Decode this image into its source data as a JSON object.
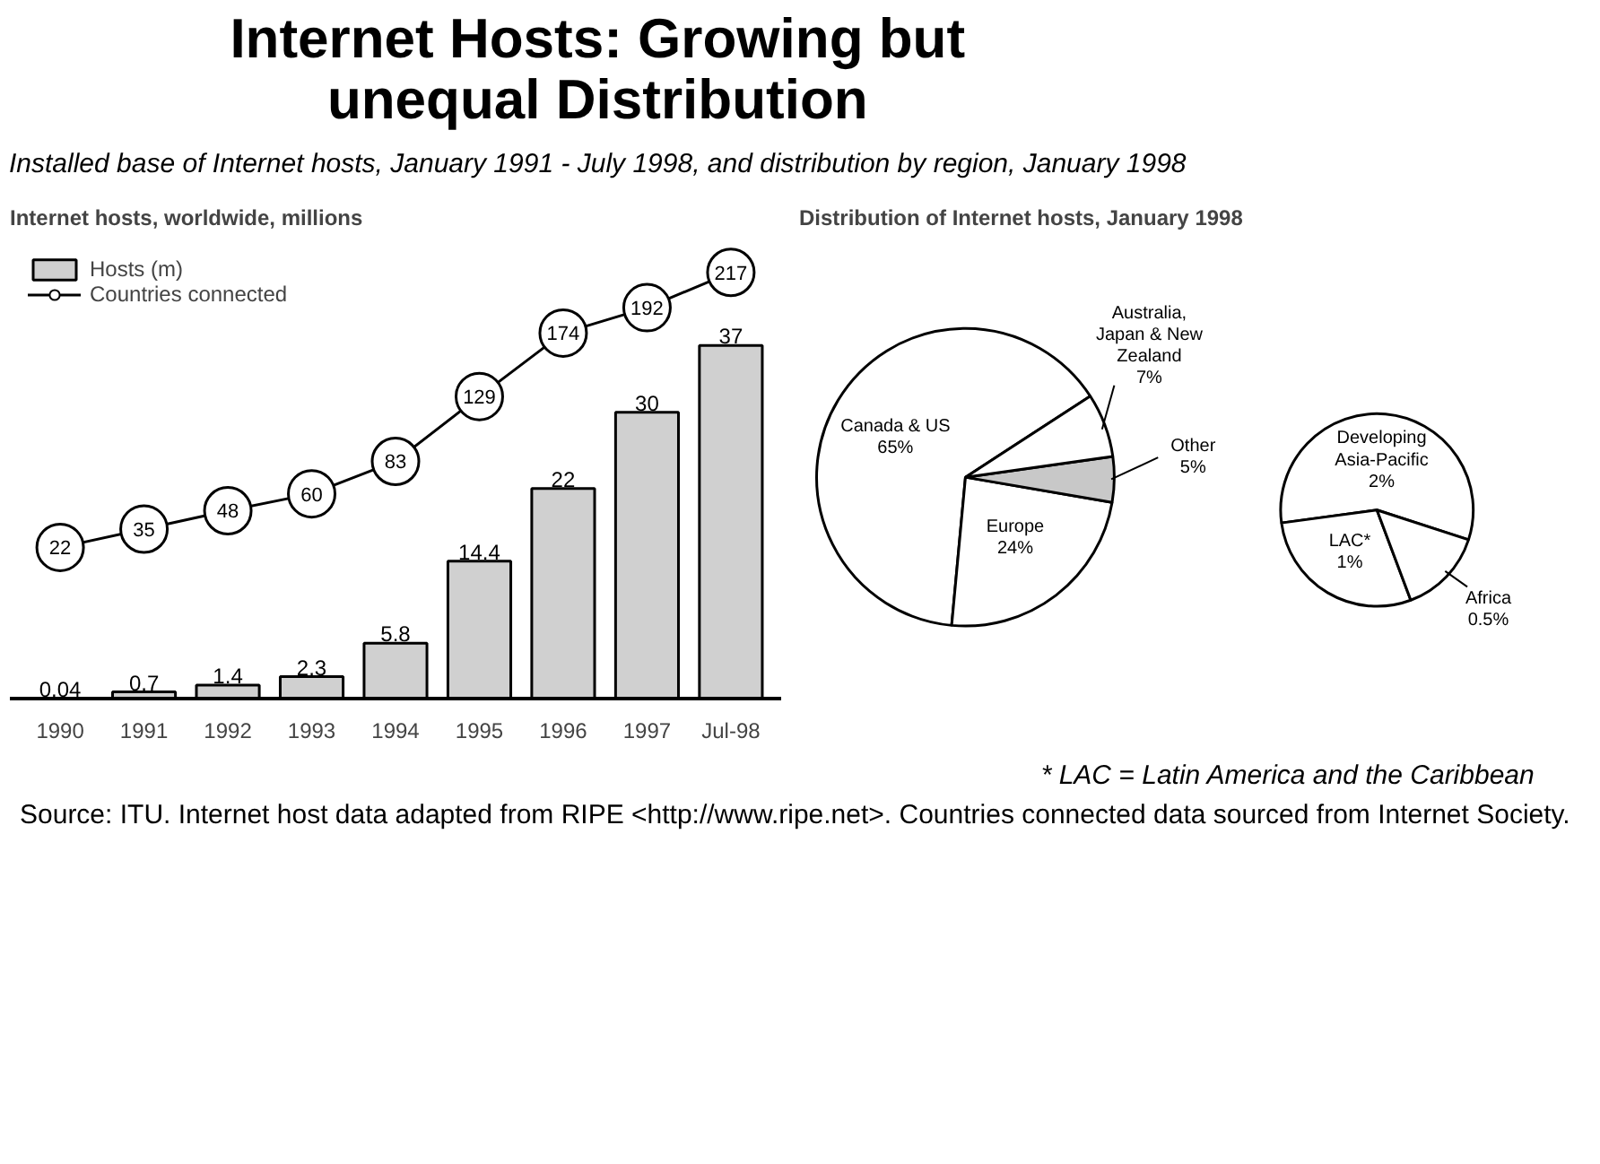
{
  "chart_data": [
    {
      "type": "other",
      "title": "Internet Hosts: Growing but unequal Distribution",
      "subtitle": "Installed base of Internet hosts, January 1991 - July 1998, and distribution by region, January 1998"
    },
    {
      "type": "bar",
      "title": "Internet hosts, worldwide, millions",
      "categories": [
        "1990",
        "1991",
        "1992",
        "1993",
        "1994",
        "1995",
        "1996",
        "1997",
        "Jul-98"
      ],
      "data_labels": true,
      "legend": "top left",
      "grid": false,
      "series": [
        {
          "name": "Hosts (m)",
          "type": "bar",
          "color": "#d0d0d0",
          "values": [
            0.04,
            0.7,
            1.4,
            2.3,
            5.8,
            14.4,
            22,
            30,
            37
          ]
        },
        {
          "name": "Countries connected",
          "type": "line",
          "axis": "y2",
          "marker": "circle",
          "color": "#000000",
          "values": [
            22,
            35,
            48,
            60,
            83,
            129,
            174,
            192,
            217
          ]
        }
      ]
    },
    {
      "type": "pie",
      "title": "Distribution of Internet hosts, January 1998",
      "categories": [
        "Canada & US",
        "Europe",
        "Other",
        "Australia, Japan & New Zealand"
      ],
      "values": [
        65,
        24,
        5,
        7
      ],
      "value_labels": [
        "65%",
        "24%",
        "5%",
        "7%"
      ],
      "colors": [
        "#ffffff",
        "#ffffff",
        "#c8c8c8",
        "#ffffff"
      ]
    },
    {
      "type": "pie",
      "categories": [
        "Developing Asia-Pacific",
        "LAC*",
        "Africa"
      ],
      "values": [
        2,
        1,
        0.5
      ],
      "value_labels": [
        "2%",
        "1%",
        "0.5%"
      ],
      "colors": [
        "#ffffff",
        "#ffffff",
        "#ffffff"
      ]
    },
    {
      "type": "other",
      "annotations": [
        "* LAC = Latin America and the Caribbean",
        "Source: ITU. Internet host data adapted from RIPE <http://www.ripe.net>. Countries connected data sourced from Internet Society."
      ]
    }
  ]
}
